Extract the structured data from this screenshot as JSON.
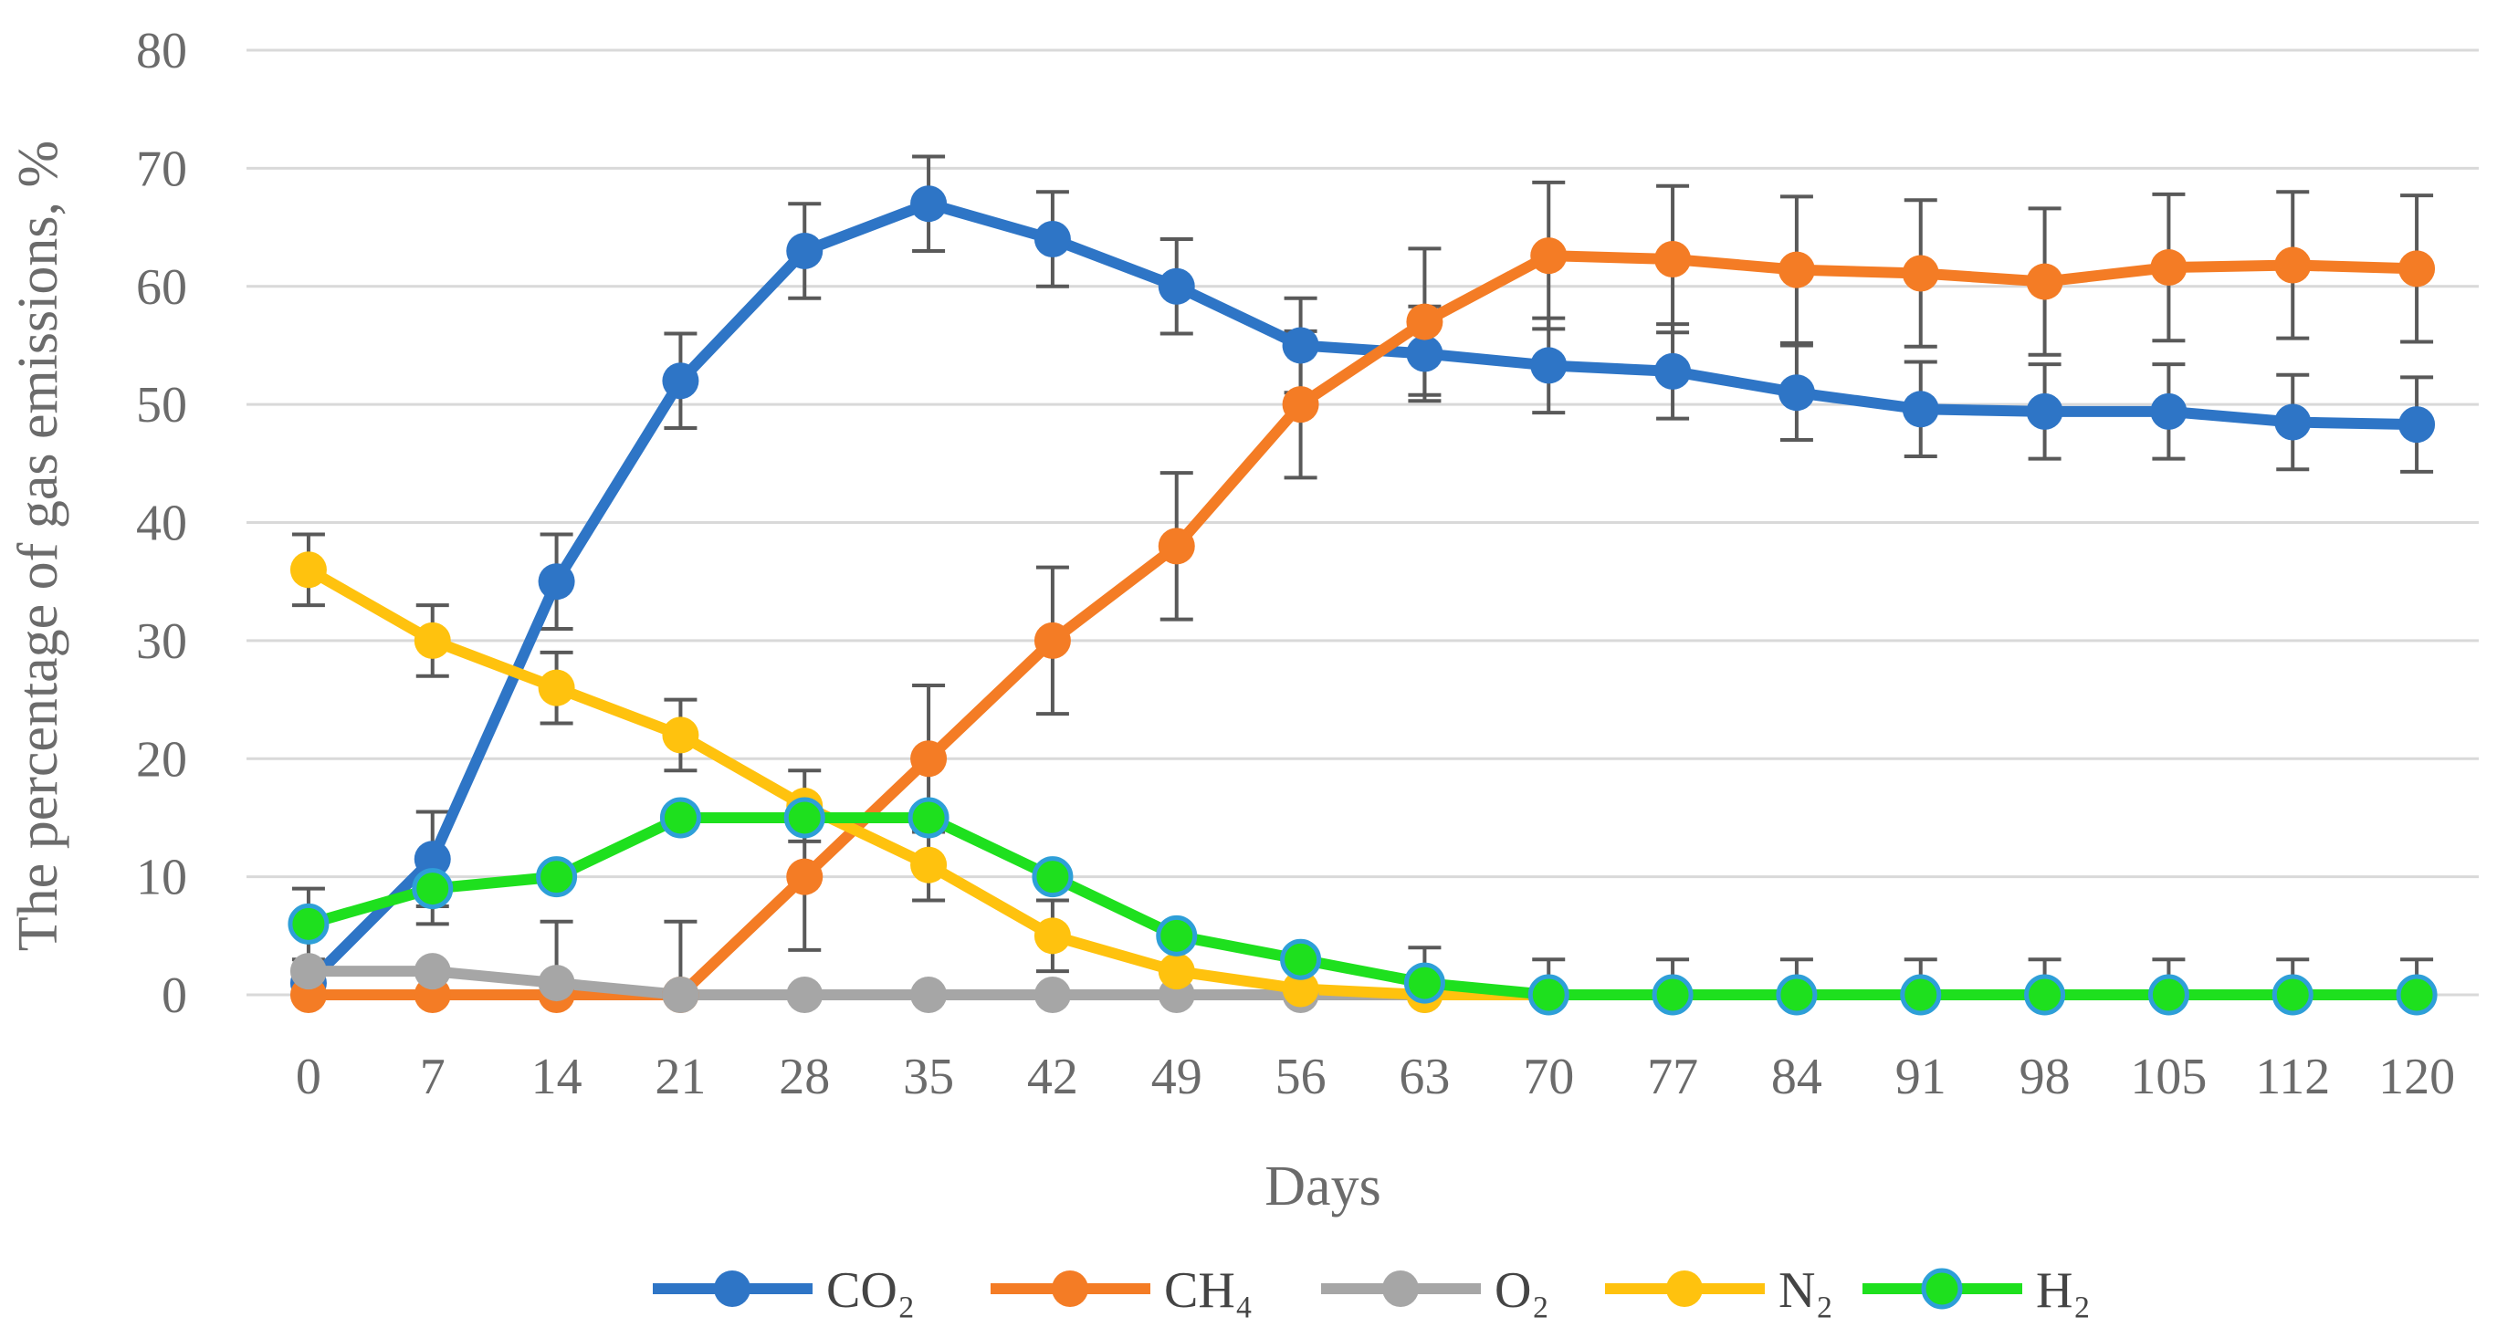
{
  "chart_data": {
    "type": "line",
    "title": "",
    "xlabel": "Days",
    "ylabel": "The percentage of gas emissions, %",
    "categories": [
      "0",
      "7",
      "14",
      "21",
      "28",
      "35",
      "42",
      "49",
      "56",
      "63",
      "70",
      "77",
      "84",
      "91",
      "98",
      "105",
      "112",
      "120"
    ],
    "ylim": [
      0,
      80
    ],
    "yticks": [
      0,
      10,
      20,
      30,
      40,
      50,
      60,
      70,
      80
    ],
    "grid": "horizontal",
    "legend_position": "bottom",
    "series": [
      {
        "name": "CO₂",
        "color": "#2E75C6",
        "values": [
          1,
          11.5,
          35,
          52,
          63,
          67,
          64,
          60,
          55,
          54.3,
          53.3,
          52.8,
          51,
          49.6,
          49.4,
          49.4,
          48.5,
          48.3
        ],
        "errors": [
          0,
          4,
          4,
          4,
          4,
          4,
          4,
          4,
          4,
          4,
          4,
          4,
          4,
          4,
          4,
          4,
          4,
          4
        ]
      },
      {
        "name": "CH₄",
        "color": "#F47C25",
        "values": [
          0,
          0,
          0,
          0,
          10,
          20,
          30,
          38,
          50,
          57,
          62.6,
          62.3,
          61.4,
          61.1,
          60.4,
          61.6,
          61.8,
          61.5
        ],
        "errors": [
          0,
          0,
          6.2,
          6.2,
          6.2,
          6.2,
          6.2,
          6.2,
          6.2,
          6.2,
          6.2,
          6.2,
          6.2,
          6.2,
          6.2,
          6.2,
          6.2,
          6.2
        ]
      },
      {
        "name": "O₂",
        "color": "#A6A6A6",
        "values": [
          2,
          2,
          1,
          0,
          0,
          0,
          0,
          0,
          0,
          0,
          0,
          0,
          0,
          0,
          0,
          0,
          0,
          0
        ],
        "errors": []
      },
      {
        "name": "N₂",
        "color": "#FFC20E",
        "values": [
          36,
          30,
          26,
          22,
          16,
          11,
          5,
          2,
          0.5,
          0,
          0,
          0,
          0,
          0,
          0,
          0,
          0,
          0
        ],
        "errors": [
          3,
          3,
          3,
          3,
          3,
          3,
          3,
          0,
          0,
          0,
          0,
          0,
          0,
          0,
          0,
          0,
          0,
          0
        ]
      },
      {
        "name": "H₂",
        "color": "#1EE01E",
        "marker_edge": "#2E9FD8",
        "values": [
          6,
          9,
          10,
          15,
          15,
          15,
          10,
          5,
          3,
          1,
          0,
          0,
          0,
          0,
          0,
          0,
          0,
          0
        ],
        "errors": [
          3,
          3,
          0,
          0,
          0,
          0,
          0,
          0,
          0,
          3,
          3,
          3,
          3,
          3,
          3,
          3,
          3,
          3
        ]
      }
    ]
  }
}
